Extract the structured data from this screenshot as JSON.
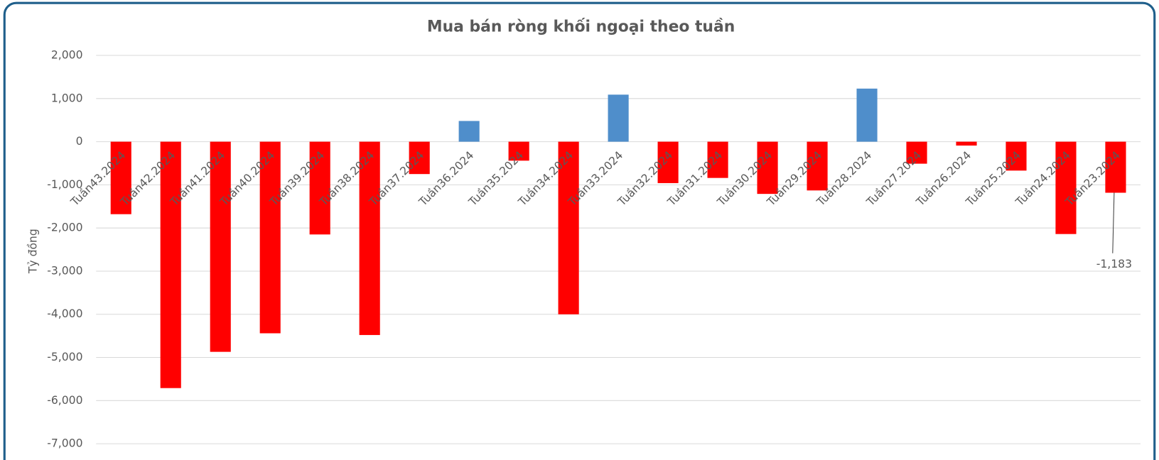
{
  "chart_data": {
    "type": "bar",
    "title": "Mua bán ròng khối ngoại theo tuần",
    "y_label": "Tỷ đồng",
    "categories": [
      "Tuần43.2024",
      "Tuần42.2024",
      "Tuần41.2024",
      "Tuần40.2024",
      "Tuần39.2024",
      "Tuần38.2024",
      "Tuần37.2024",
      "Tuần36.2024",
      "Tuần35.2024",
      "Tuần34.2024",
      "Tuần33.2024",
      "Tuần32.2024",
      "Tuần31.2024",
      "Tuần30.2024",
      "Tuần29.2024",
      "Tuần28.2024",
      "Tuần27.2024",
      "Tuần26.2024",
      "Tuần25.2024",
      "Tuần24.2024",
      "Tuần23.2024"
    ],
    "values": [
      -1680,
      -5710,
      -4870,
      -4440,
      -2150,
      -4480,
      -750,
      480,
      -440,
      -4000,
      1090,
      -960,
      -840,
      -1210,
      -1130,
      1230,
      -510,
      -90,
      -670,
      -2140,
      -1183
    ],
    "value_labels": [
      null,
      null,
      null,
      null,
      null,
      null,
      null,
      null,
      null,
      null,
      null,
      null,
      null,
      null,
      null,
      null,
      null,
      null,
      null,
      null,
      "-1,183"
    ],
    "positive_color": "#4f8ecb",
    "negative_color": "#ff0000",
    "ylim": [
      -7000,
      2000
    ],
    "yticks": [
      {
        "value": -7000,
        "label": "-7,000"
      },
      {
        "value": -6000,
        "label": "-6,000"
      },
      {
        "value": -5000,
        "label": "-5,000"
      },
      {
        "value": -4000,
        "label": "-4,000"
      },
      {
        "value": -3000,
        "label": "-3,000"
      },
      {
        "value": -2000,
        "label": "-2,000"
      },
      {
        "value": -1000,
        "label": "-1,000"
      },
      0,
      {
        "value": 1000,
        "label": "1,000"
      },
      {
        "value": 2000,
        "label": "2,000"
      }
    ],
    "grid": true
  }
}
